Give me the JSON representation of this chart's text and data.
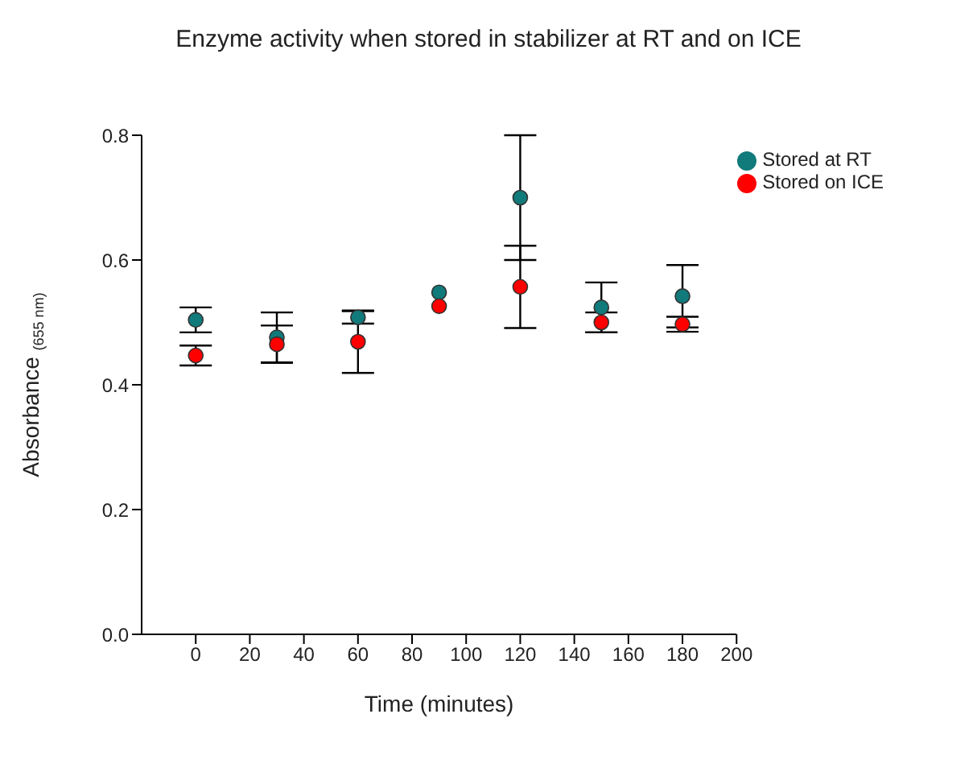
{
  "chart_data": {
    "type": "scatter",
    "title": "Enzyme activity when stored in stabilizer at RT and on ICE",
    "xlabel": "Time (minutes)",
    "ylabel": "Absorbance $_{(655 nm)}$",
    "x": [
      0,
      30,
      60,
      90,
      120,
      150,
      180
    ],
    "series": [
      {
        "name": "Stored at RT",
        "color": "#117a7a",
        "values": [
          0.504,
          0.476,
          0.508,
          0.548,
          0.7,
          0.524,
          0.542
        ],
        "errors": [
          0.02,
          0.04,
          0.01,
          null,
          0.1,
          0.04,
          0.05
        ]
      },
      {
        "name": "Stored on ICE",
        "color": "#ff0000",
        "values": [
          0.447,
          0.465,
          0.469,
          0.526,
          0.557,
          0.5,
          0.497
        ],
        "errors": [
          0.016,
          0.03,
          0.05,
          null,
          0.066,
          0.016,
          0.012
        ]
      }
    ],
    "xlim": [
      -20,
      200
    ],
    "xticks": [
      0,
      20,
      40,
      60,
      80,
      100,
      120,
      140,
      160,
      180,
      200
    ],
    "ylim": [
      0,
      0.8
    ],
    "yticks": [
      {
        "value": 0,
        "label": "0.0"
      },
      0.2,
      0.4,
      0.6,
      0.8
    ],
    "marker": "circle",
    "legend": "top right",
    "grid": false
  }
}
